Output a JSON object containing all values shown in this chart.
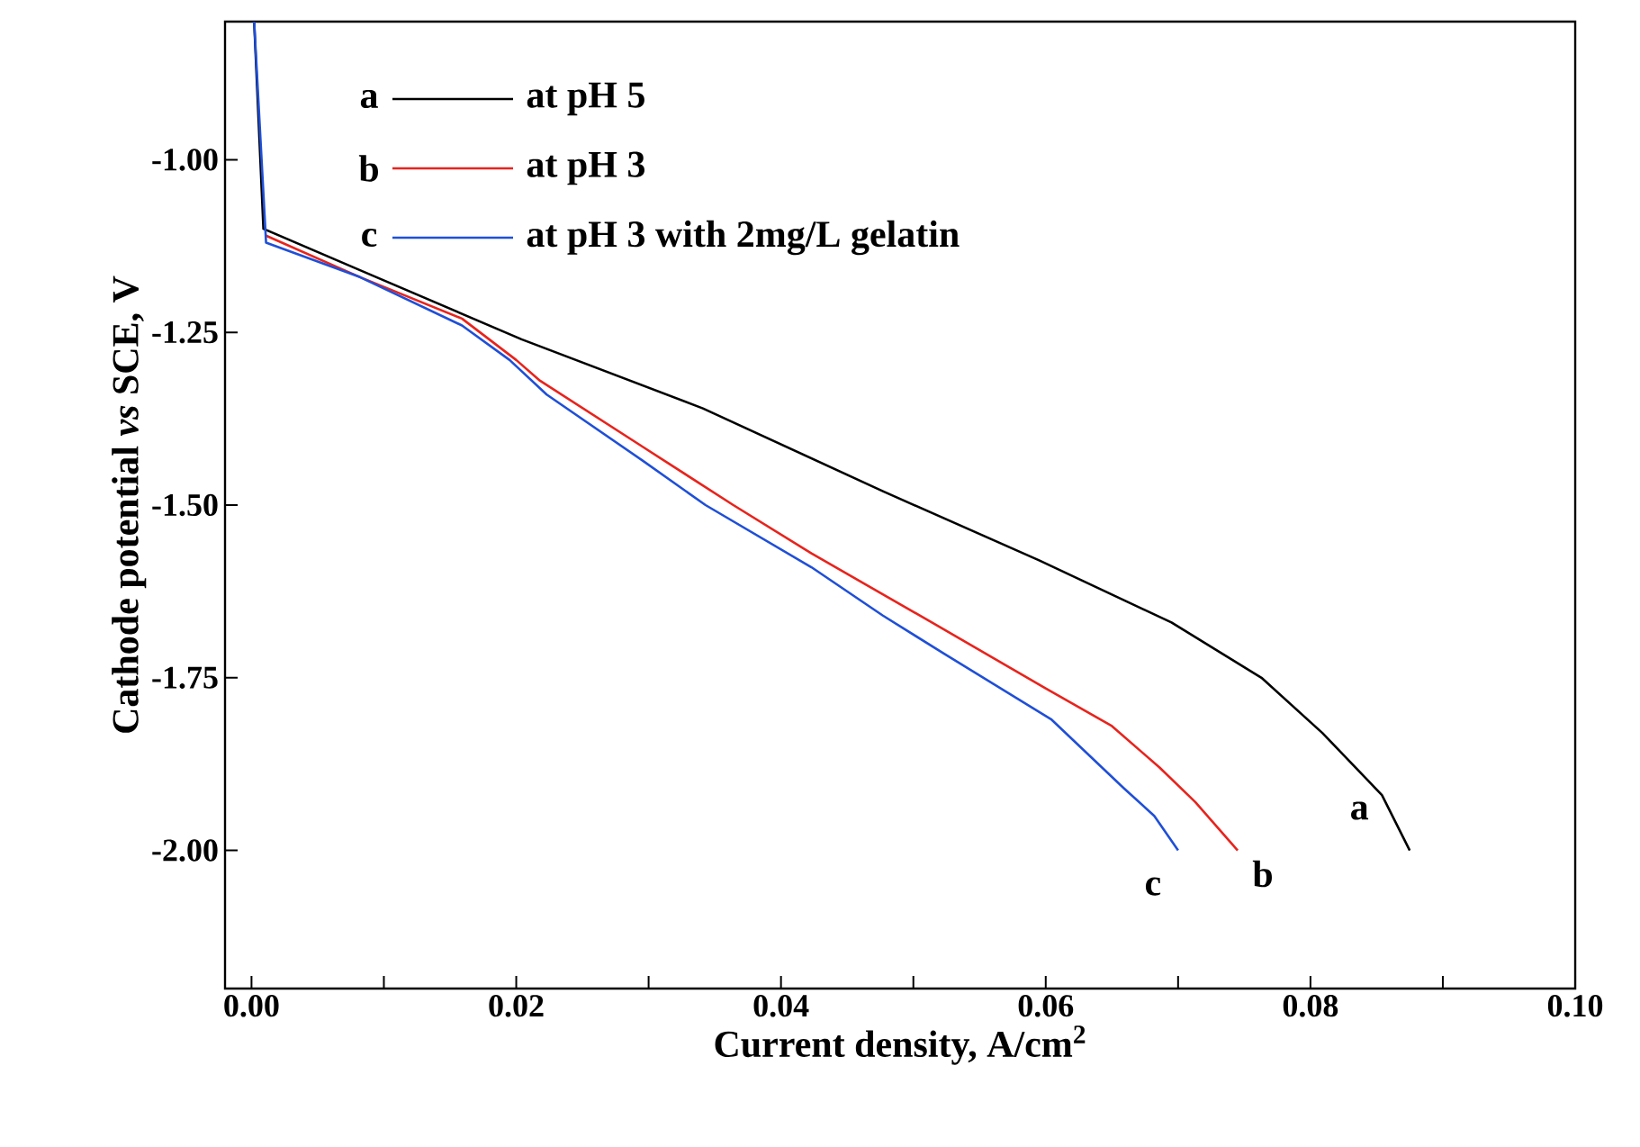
{
  "chart_data": {
    "type": "line",
    "xlabel": "Current density, A/cm$^{2}$",
    "ylabel": "Cathode potential *vs* SCE, V",
    "xlim": [
      -0.002,
      0.1
    ],
    "ylim": [
      -2.2,
      -0.8
    ],
    "xticks": [
      {
        "value": 0,
        "label": "0.00"
      },
      {
        "value": 0.01,
        "label": null
      },
      {
        "value": 0.02,
        "label": "0.02"
      },
      {
        "value": 0.03,
        "label": null
      },
      {
        "value": 0.04,
        "label": "0.04"
      },
      {
        "value": 0.05,
        "label": null
      },
      {
        "value": 0.06,
        "label": "0.06"
      },
      {
        "value": 0.07,
        "label": null
      },
      {
        "value": 0.08,
        "label": "0.08"
      },
      {
        "value": 0.09,
        "label": null
      },
      {
        "value": 0.1,
        "label": "0.10"
      }
    ],
    "yticks": [
      {
        "value": -2,
        "label": "-2.00"
      },
      {
        "value": -1.75,
        "label": "-1.75"
      },
      {
        "value": -1.5,
        "label": "-1.50"
      },
      {
        "value": -1.25,
        "label": "-1.25"
      },
      {
        "value": -1,
        "label": "-1.00"
      }
    ],
    "legend": "top left",
    "grid": false,
    "marker": "none",
    "line_style": "solid",
    "series": [
      {
        "name": "at pH 5",
        "color": "#000000",
        "x": [
          0.0002,
          0.0009,
          0.0082,
          0.0204,
          0.0341,
          0.0477,
          0.0595,
          0.0695,
          0.0763,
          0.0809,
          0.0854,
          0.0875
        ],
        "values": [
          -0.8,
          -1.1,
          -1.16,
          -1.26,
          -1.36,
          -1.48,
          -1.58,
          -1.67,
          -1.75,
          -1.83,
          -1.92,
          -2.0
        ]
      },
      {
        "name": "at pH 3",
        "color": "#e8231c",
        "x": [
          0.0011,
          0.0082,
          0.0159,
          0.02,
          0.0218,
          0.0295,
          0.0364,
          0.0423,
          0.0514,
          0.0595,
          0.065,
          0.0686,
          0.0713,
          0.0745
        ],
        "values": [
          -1.11,
          -1.17,
          -1.23,
          -1.29,
          -1.32,
          -1.415,
          -1.5,
          -1.57,
          -1.67,
          -1.76,
          -1.82,
          -1.88,
          -1.93,
          -2.0
        ]
      },
      {
        "name": "at pH 3 with 2mg/L gelatin",
        "color": "#1f4fd8",
        "x": [
          0.0002,
          0.0011,
          0.0082,
          0.0159,
          0.0195,
          0.0223,
          0.0295,
          0.0343,
          0.0423,
          0.0477,
          0.0523,
          0.0604,
          0.0659,
          0.0682,
          0.07
        ],
        "values": [
          -0.8,
          -1.12,
          -1.17,
          -1.24,
          -1.29,
          -1.34,
          -1.435,
          -1.5,
          -1.59,
          -1.66,
          -1.715,
          -1.81,
          -1.91,
          -1.95,
          -2.0
        ]
      }
    ],
    "annotations": [
      "a",
      "b",
      "c",
      "a",
      "b",
      "c"
    ]
  }
}
